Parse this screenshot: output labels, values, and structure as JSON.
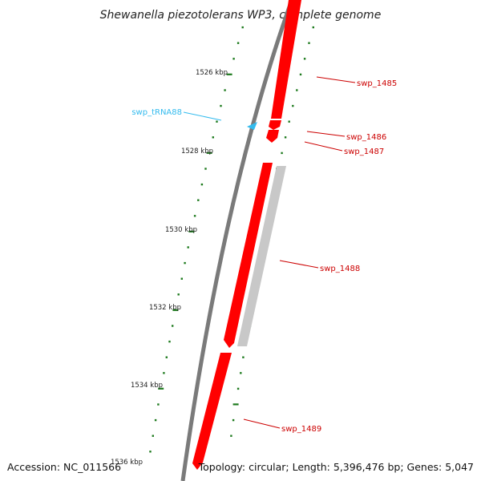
{
  "title": "Shewanella piezotolerans WP3, complete genome",
  "accession": "Accession: NC_011566",
  "summary": "Topology: circular; Length: 5,396,476 bp; Genes: 5,047",
  "colors": {
    "backbone": "#7a7a7a",
    "gene_forward": "#ff0000",
    "gene_reverse": "#c8c8c8",
    "trna": "#33bbee",
    "tick_dots": "#1d7a1d",
    "gene_label": "#cc0000",
    "trna_label": "#33bbee"
  },
  "ticks": [
    {
      "label": "1526 kbp"
    },
    {
      "label": "1528 kbp"
    },
    {
      "label": "1530 kbp"
    },
    {
      "label": "1532 kbp"
    },
    {
      "label": "1534 kbp"
    },
    {
      "label": "1536 kbp"
    }
  ],
  "genes": [
    {
      "label": "swp_1485",
      "strand": "forward"
    },
    {
      "label": "swp_1486",
      "strand": "forward"
    },
    {
      "label": "swp_1487",
      "strand": "forward"
    },
    {
      "label": "swp_1488",
      "strand": "reverse"
    },
    {
      "label": "swp_1489",
      "strand": "forward"
    }
  ],
  "trna": {
    "label": "swp_tRNA88"
  }
}
